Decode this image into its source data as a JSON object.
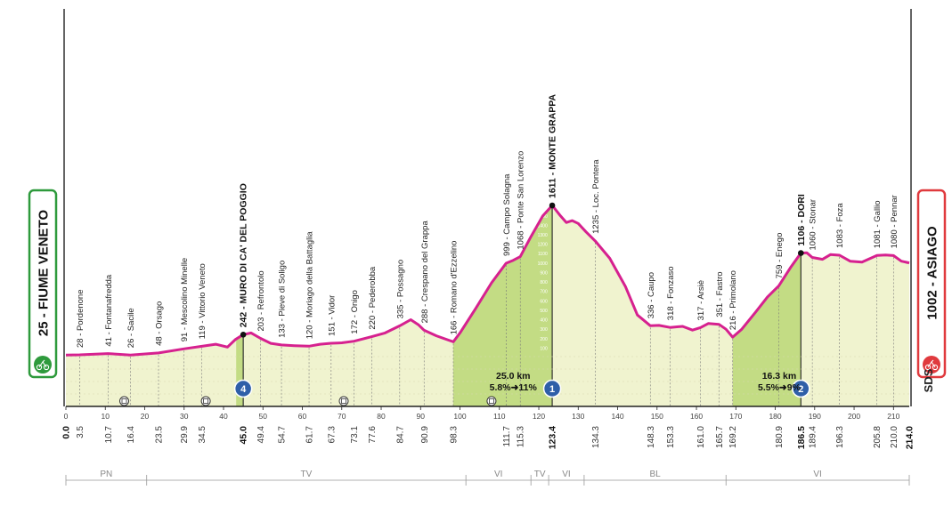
{
  "chart_data": {
    "type": "area",
    "title": "",
    "xlabel": "",
    "ylabel": "",
    "xlim": [
      0,
      214
    ],
    "x_ticks": [
      0,
      10,
      20,
      30,
      40,
      50,
      60,
      70,
      80,
      90,
      100,
      110,
      120,
      130,
      140,
      150,
      160,
      170,
      180,
      190,
      200,
      210
    ],
    "start": {
      "label": "25 - FIUME VENETO",
      "color": "#2e9a3c"
    },
    "finish": {
      "label": "1002 - ASIAGO",
      "color": "#e03a3e"
    },
    "waypoints": [
      {
        "km": 0.0,
        "label": "",
        "km_label": "0.0",
        "bold": true
      },
      {
        "km": 3.5,
        "label": "28 - Pordenone",
        "km_label": "3.5"
      },
      {
        "km": 10.7,
        "label": "41 - Fontanafredda",
        "km_label": "10.7"
      },
      {
        "km": 16.4,
        "label": "26 - Sacile",
        "km_label": "16.4"
      },
      {
        "km": 23.5,
        "label": "48 - Orsago",
        "km_label": "23.5"
      },
      {
        "km": 29.9,
        "label": "91 - Mescolino Minelle",
        "km_label": "29.9"
      },
      {
        "km": 34.5,
        "label": "119 - Vittorio Veneto",
        "km_label": "34.5"
      },
      {
        "km": 45.0,
        "label": "242 - MURO DI CA' DEL POGGIO",
        "km_label": "45.0",
        "bold": true
      },
      {
        "km": 49.4,
        "label": "203 - Refrontolo",
        "km_label": "49.4"
      },
      {
        "km": 54.7,
        "label": "133 - Pieve di Soligo",
        "km_label": "54.7"
      },
      {
        "km": 61.7,
        "label": "120 - Moriago della Battaglia",
        "km_label": "61.7"
      },
      {
        "km": 67.3,
        "label": "151 - Vidor",
        "km_label": "67.3"
      },
      {
        "km": 73.1,
        "label": "172 - Onigo",
        "km_label": "73.1"
      },
      {
        "km": 77.6,
        "label": "220 - Pederobba",
        "km_label": "77.6"
      },
      {
        "km": 84.7,
        "label": "335 - Possagno",
        "km_label": "84.7"
      },
      {
        "km": 90.9,
        "label": "288 - Crespano del Grappa",
        "km_label": "90.9"
      },
      {
        "km": 98.3,
        "label": "166 - Romano d'Ezzelino",
        "km_label": "98.3"
      },
      {
        "km": 111.7,
        "label": "999 - Campo Solagna",
        "km_label": "111.7"
      },
      {
        "km": 115.3,
        "label": "1068 - Ponte San Lorenzo",
        "km_label": "115.3"
      },
      {
        "km": 123.4,
        "label": "1611 - MONTE GRAPPA",
        "km_label": "123.4",
        "bold": true
      },
      {
        "km": 134.3,
        "label": "1235 - Loc. Pontera",
        "km_label": "134.3"
      },
      {
        "km": 148.3,
        "label": "336 - Caupo",
        "km_label": "148.3"
      },
      {
        "km": 153.3,
        "label": "318 - Fonzaso",
        "km_label": "153.3"
      },
      {
        "km": 161.0,
        "label": "317 - Arsiè",
        "km_label": "161.0"
      },
      {
        "km": 165.7,
        "label": "351 - Fastro",
        "km_label": "165.7"
      },
      {
        "km": 169.2,
        "label": "216 - Primolano",
        "km_label": "169.2"
      },
      {
        "km": 180.9,
        "label": "759 - Enego",
        "km_label": "180.9"
      },
      {
        "km": 186.5,
        "label": "1106 - DORI",
        "km_label": "186.5",
        "bold": true
      },
      {
        "km": 189.4,
        "label": "1060 - Stonar",
        "km_label": "189.4"
      },
      {
        "km": 196.3,
        "label": "1083 - Foza",
        "km_label": "196.3"
      },
      {
        "km": 205.8,
        "label": "1081 - Gallio",
        "km_label": "205.8"
      },
      {
        "km": 210.0,
        "label": "1080 - Pennar",
        "km_label": "210.0"
      },
      {
        "km": 214.0,
        "label": "",
        "km_label": "214.0",
        "bold": true
      }
    ],
    "profile": [
      [
        0,
        25
      ],
      [
        3.5,
        28
      ],
      [
        10.7,
        41
      ],
      [
        16.4,
        26
      ],
      [
        23.5,
        48
      ],
      [
        29.9,
        91
      ],
      [
        34.5,
        119
      ],
      [
        38,
        140
      ],
      [
        41,
        110
      ],
      [
        43,
        190
      ],
      [
        45,
        242
      ],
      [
        47,
        260
      ],
      [
        49.4,
        203
      ],
      [
        52,
        150
      ],
      [
        54.7,
        133
      ],
      [
        58,
        125
      ],
      [
        61.7,
        120
      ],
      [
        64.5,
        140
      ],
      [
        67.3,
        151
      ],
      [
        70,
        155
      ],
      [
        73.1,
        172
      ],
      [
        77.6,
        220
      ],
      [
        81,
        260
      ],
      [
        84.7,
        335
      ],
      [
        87.5,
        400
      ],
      [
        89.5,
        345
      ],
      [
        90.9,
        288
      ],
      [
        94,
        230
      ],
      [
        98.3,
        166
      ],
      [
        100,
        260
      ],
      [
        104,
        520
      ],
      [
        108,
        790
      ],
      [
        111.7,
        999
      ],
      [
        113.5,
        1030
      ],
      [
        115.3,
        1068
      ],
      [
        118,
        1280
      ],
      [
        121,
        1500
      ],
      [
        123.4,
        1611
      ],
      [
        125.5,
        1500
      ],
      [
        127,
        1430
      ],
      [
        128.5,
        1450
      ],
      [
        130,
        1420
      ],
      [
        132,
        1330
      ],
      [
        134.3,
        1235
      ],
      [
        138,
        1050
      ],
      [
        142,
        750
      ],
      [
        145,
        450
      ],
      [
        148.3,
        336
      ],
      [
        150.5,
        340
      ],
      [
        153.3,
        318
      ],
      [
        156.5,
        330
      ],
      [
        159,
        290
      ],
      [
        161,
        317
      ],
      [
        163,
        360
      ],
      [
        165.7,
        351
      ],
      [
        167.5,
        300
      ],
      [
        169.2,
        216
      ],
      [
        171.5,
        300
      ],
      [
        175,
        480
      ],
      [
        178,
        640
      ],
      [
        180.9,
        759
      ],
      [
        184,
        960
      ],
      [
        186.5,
        1106
      ],
      [
        188,
        1110
      ],
      [
        189.4,
        1060
      ],
      [
        192,
        1040
      ],
      [
        194,
        1090
      ],
      [
        196.3,
        1083
      ],
      [
        199,
        1020
      ],
      [
        202,
        1010
      ],
      [
        205.8,
        1081
      ],
      [
        208,
        1085
      ],
      [
        210,
        1080
      ],
      [
        212,
        1020
      ],
      [
        214,
        1002
      ]
    ],
    "sprints": [
      {
        "km": 14.8,
        "icon": "intermediate-sprint-icon"
      },
      {
        "km": 35.5,
        "icon": "intermediate-sprint-icon"
      },
      {
        "km": 70.5,
        "icon": "intermediate-sprint-icon"
      },
      {
        "km": 108.0,
        "icon": "bonus-sprint-icon"
      }
    ],
    "climbs": [
      {
        "km": 45.0,
        "rank": "4",
        "color": "#2f5fa8"
      },
      {
        "km": 123.4,
        "rank": "1",
        "length": "25.0 km",
        "gradient": "5.8%➜11%",
        "color": "#2f5fa8"
      },
      {
        "km": 186.5,
        "rank": "2",
        "length": "16.3 km",
        "gradient": "5.5%➜9%",
        "color": "#2f5fa8"
      }
    ],
    "climb_label_x_km": {
      "1": 113.5,
      "2": 181.0
    },
    "provinces": [
      {
        "label": "PN",
        "from": 0,
        "to": 20.5
      },
      {
        "label": "TV",
        "from": 20.5,
        "to": 101.5
      },
      {
        "label": "VI",
        "from": 101.5,
        "to": 118.0
      },
      {
        "label": "TV",
        "from": 118.0,
        "to": 122.5
      },
      {
        "label": "VI",
        "from": 122.5,
        "to": 131.5
      },
      {
        "label": "BL",
        "from": 131.5,
        "to": 167.5
      },
      {
        "label": "VI",
        "from": 167.5,
        "to": 214
      }
    ],
    "altitude_scale": [
      100,
      200,
      300,
      400,
      500,
      600,
      700,
      800,
      900,
      1000,
      1100,
      1200,
      1300,
      1400,
      1500,
      1600
    ],
    "grid": false,
    "colors": {
      "line": "#d6218f",
      "fill": "#f0f3cf",
      "climb_fill": "#c3dc84",
      "axis": "#222222"
    }
  },
  "brand": {
    "logo_text": "SDS"
  }
}
